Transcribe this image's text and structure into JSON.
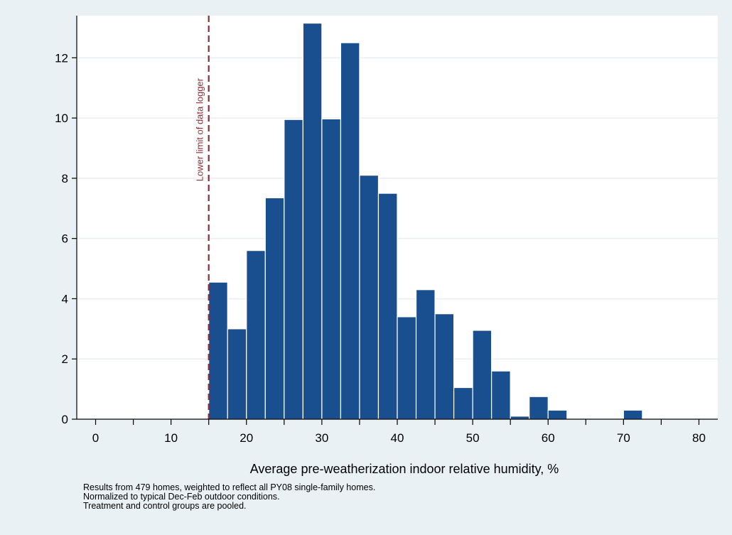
{
  "chart_data": {
    "type": "bar",
    "subtype": "histogram",
    "xlabel": "Average pre-weatherization indoor relative humidity, %",
    "ylabel": "",
    "xlim": [
      -2.5,
      82.5
    ],
    "ylim": [
      0,
      13.4
    ],
    "xticks": [
      0,
      10,
      20,
      30,
      40,
      50,
      60,
      70,
      80
    ],
    "xtick_labels": [
      "0",
      "10",
      "20",
      "30",
      "40",
      "50",
      "60",
      "70",
      "80"
    ],
    "yticks": [
      0,
      2,
      4,
      6,
      8,
      10,
      12
    ],
    "ytick_labels": [
      "0",
      "2",
      "4",
      "6",
      "8",
      "10",
      "12"
    ],
    "grid": true,
    "bar_color": "#1a4f8f",
    "bins": [
      {
        "x0": 15,
        "x1": 17.5,
        "value": 4.55
      },
      {
        "x0": 17.5,
        "x1": 20,
        "value": 3.0
      },
      {
        "x0": 20,
        "x1": 22.5,
        "value": 5.6
      },
      {
        "x0": 22.5,
        "x1": 25,
        "value": 7.35
      },
      {
        "x0": 25,
        "x1": 27.5,
        "value": 9.95
      },
      {
        "x0": 27.5,
        "x1": 30,
        "value": 13.15
      },
      {
        "x0": 30,
        "x1": 32.5,
        "value": 9.97
      },
      {
        "x0": 32.5,
        "x1": 35,
        "value": 12.5
      },
      {
        "x0": 35,
        "x1": 37.5,
        "value": 8.1
      },
      {
        "x0": 37.5,
        "x1": 40,
        "value": 7.5
      },
      {
        "x0": 40,
        "x1": 42.5,
        "value": 3.4
      },
      {
        "x0": 42.5,
        "x1": 45,
        "value": 4.3
      },
      {
        "x0": 45,
        "x1": 47.5,
        "value": 3.5
      },
      {
        "x0": 47.5,
        "x1": 50,
        "value": 1.05
      },
      {
        "x0": 50,
        "x1": 52.5,
        "value": 2.95
      },
      {
        "x0": 52.5,
        "x1": 55,
        "value": 1.6
      },
      {
        "x0": 55,
        "x1": 57.5,
        "value": 0.1
      },
      {
        "x0": 57.5,
        "x1": 60,
        "value": 0.75
      },
      {
        "x0": 60,
        "x1": 62.5,
        "value": 0.3
      },
      {
        "x0": 62.5,
        "x1": 65,
        "value": 0
      },
      {
        "x0": 65,
        "x1": 67.5,
        "value": 0
      },
      {
        "x0": 67.5,
        "x1": 70,
        "value": 0
      },
      {
        "x0": 70,
        "x1": 72.5,
        "value": 0.3
      },
      {
        "x0": 72.5,
        "x1": 75,
        "value": 0
      },
      {
        "x0": 75,
        "x1": 77.5,
        "value": 0
      },
      {
        "x0": 77.5,
        "x1": 80,
        "value": 0
      }
    ],
    "reference_line": {
      "x": 15,
      "label": "Lower limit of data logger",
      "color": "#8b2e3a",
      "style": "dashed"
    },
    "notes": [
      "Results from 479 homes, weighted to reflect all PY08 single-family homes.",
      "Normalized to typical Dec-Feb outdoor conditions.",
      "Treatment and control groups are pooled."
    ]
  },
  "colors": {
    "outer_background": "#eaf1f4",
    "plot_background": "#ffffff",
    "gridline": "#e9eef1",
    "axis": "#000000"
  }
}
